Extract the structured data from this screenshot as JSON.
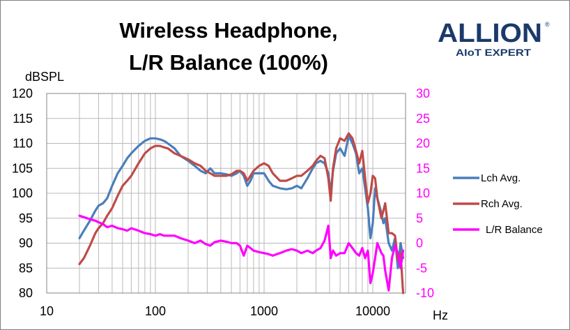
{
  "logo": {
    "brand": "ALLION",
    "registered": "®",
    "tagline": "AIoT EXPERT",
    "brand_color": "#1b3a6b"
  },
  "chart_data": {
    "type": "line",
    "title_lines": [
      "Wireless Headphone,",
      "L/R Balance (100%)"
    ],
    "ylabel": "dBSPL",
    "xlabel": "Hz",
    "x_scale": "log",
    "xlim": [
      10,
      20000
    ],
    "x_ticks": [
      10,
      100,
      1000,
      10000
    ],
    "x_tick_labels": [
      "10",
      "100",
      "1000",
      "10000"
    ],
    "ylim": [
      80,
      120
    ],
    "y_ticks": [
      80,
      85,
      90,
      95,
      100,
      105,
      110,
      115,
      120
    ],
    "y_tick_labels": [
      "80",
      "85",
      "90",
      "95",
      "100",
      "105",
      "110",
      "115",
      "120"
    ],
    "y2lim": [
      -10,
      30
    ],
    "y2_ticks": [
      -10,
      -5,
      0,
      5,
      10,
      15,
      20,
      25,
      30
    ],
    "y2_tick_labels": [
      "-10",
      "-5",
      "0",
      "5",
      "10",
      "15",
      "20",
      "25",
      "30"
    ],
    "grid": true,
    "legend_position": "right",
    "series": [
      {
        "name": "Lch Avg.",
        "axis": "left",
        "color": "#4a7ebb",
        "points": [
          [
            20,
            91.0
          ],
          [
            22,
            92.5
          ],
          [
            25,
            94.5
          ],
          [
            28,
            96.5
          ],
          [
            30,
            97.5
          ],
          [
            33,
            98.0
          ],
          [
            36,
            99.0
          ],
          [
            40,
            101.5
          ],
          [
            45,
            104.0
          ],
          [
            50,
            105.5
          ],
          [
            55,
            107.0
          ],
          [
            60,
            108.0
          ],
          [
            70,
            109.5
          ],
          [
            80,
            110.5
          ],
          [
            90,
            111.0
          ],
          [
            100,
            111.0
          ],
          [
            110,
            110.8
          ],
          [
            120,
            110.5
          ],
          [
            130,
            110.0
          ],
          [
            150,
            109.0
          ],
          [
            170,
            107.5
          ],
          [
            200,
            106.5
          ],
          [
            230,
            105.5
          ],
          [
            260,
            104.5
          ],
          [
            290,
            104.0
          ],
          [
            320,
            105.0
          ],
          [
            350,
            104.0
          ],
          [
            400,
            104.0
          ],
          [
            450,
            103.8
          ],
          [
            500,
            103.5
          ],
          [
            560,
            104.0
          ],
          [
            600,
            104.5
          ],
          [
            650,
            103.5
          ],
          [
            700,
            101.5
          ],
          [
            750,
            102.5
          ],
          [
            800,
            104.0
          ],
          [
            900,
            104.0
          ],
          [
            1000,
            104.0
          ],
          [
            1100,
            102.5
          ],
          [
            1200,
            101.5
          ],
          [
            1400,
            101.0
          ],
          [
            1600,
            100.8
          ],
          [
            1800,
            101.0
          ],
          [
            2000,
            101.5
          ],
          [
            2200,
            101.0
          ],
          [
            2500,
            103.0
          ],
          [
            2800,
            105.0
          ],
          [
            3000,
            106.0
          ],
          [
            3300,
            106.5
          ],
          [
            3600,
            106.0
          ],
          [
            3900,
            104.0
          ],
          [
            4100,
            100.0
          ],
          [
            4300,
            104.5
          ],
          [
            4600,
            108.0
          ],
          [
            5000,
            109.0
          ],
          [
            5500,
            107.5
          ],
          [
            6000,
            111.5
          ],
          [
            6500,
            110.0
          ],
          [
            7000,
            108.0
          ],
          [
            7500,
            104.0
          ],
          [
            8000,
            105.0
          ],
          [
            8500,
            101.0
          ],
          [
            9000,
            97.0
          ],
          [
            9500,
            91.0
          ],
          [
            10000,
            94.0
          ],
          [
            10500,
            101.0
          ],
          [
            11000,
            99.0
          ],
          [
            12000,
            96.0
          ],
          [
            12500,
            94.0
          ],
          [
            13000,
            95.0
          ],
          [
            14000,
            90.0
          ],
          [
            15000,
            88.5
          ],
          [
            16000,
            91.0
          ],
          [
            17000,
            85.0
          ],
          [
            18000,
            90.0
          ],
          [
            19000,
            87.0
          ]
        ]
      },
      {
        "name": "Rch Avg.",
        "axis": "left",
        "color": "#be4b48",
        "points": [
          [
            20,
            85.8
          ],
          [
            22,
            87.0
          ],
          [
            25,
            89.5
          ],
          [
            28,
            92.0
          ],
          [
            30,
            93.0
          ],
          [
            33,
            94.0
          ],
          [
            36,
            95.5
          ],
          [
            40,
            97.0
          ],
          [
            45,
            99.5
          ],
          [
            50,
            101.5
          ],
          [
            55,
            102.5
          ],
          [
            60,
            103.5
          ],
          [
            70,
            106.0
          ],
          [
            80,
            108.0
          ],
          [
            90,
            109.0
          ],
          [
            100,
            109.5
          ],
          [
            110,
            109.5
          ],
          [
            120,
            109.2
          ],
          [
            130,
            109.0
          ],
          [
            150,
            108.0
          ],
          [
            170,
            107.5
          ],
          [
            200,
            106.8
          ],
          [
            230,
            106.0
          ],
          [
            260,
            105.5
          ],
          [
            290,
            104.5
          ],
          [
            320,
            104.0
          ],
          [
            350,
            103.5
          ],
          [
            400,
            103.5
          ],
          [
            450,
            103.5
          ],
          [
            500,
            103.8
          ],
          [
            560,
            104.5
          ],
          [
            600,
            104.5
          ],
          [
            650,
            104.0
          ],
          [
            700,
            102.5
          ],
          [
            750,
            103.5
          ],
          [
            800,
            104.5
          ],
          [
            900,
            105.5
          ],
          [
            1000,
            106.0
          ],
          [
            1100,
            105.5
          ],
          [
            1200,
            104.0
          ],
          [
            1400,
            102.5
          ],
          [
            1600,
            102.5
          ],
          [
            1800,
            103.0
          ],
          [
            2000,
            103.5
          ],
          [
            2200,
            103.5
          ],
          [
            2500,
            104.5
          ],
          [
            2800,
            105.5
          ],
          [
            3000,
            106.5
          ],
          [
            3300,
            107.5
          ],
          [
            3600,
            107.0
          ],
          [
            3900,
            103.0
          ],
          [
            4100,
            98.5
          ],
          [
            4300,
            105.0
          ],
          [
            4600,
            109.0
          ],
          [
            5000,
            111.0
          ],
          [
            5500,
            110.5
          ],
          [
            6000,
            112.0
          ],
          [
            6500,
            111.0
          ],
          [
            7000,
            108.5
          ],
          [
            7500,
            106.0
          ],
          [
            8000,
            108.5
          ],
          [
            8500,
            103.0
          ],
          [
            9000,
            98.0
          ],
          [
            9500,
            100.0
          ],
          [
            10000,
            103.5
          ],
          [
            10500,
            103.0
          ],
          [
            11000,
            99.0
          ],
          [
            12000,
            95.0
          ],
          [
            12500,
            96.5
          ],
          [
            13000,
            98.0
          ],
          [
            14000,
            92.0
          ],
          [
            15000,
            92.0
          ],
          [
            16000,
            91.5
          ],
          [
            17000,
            86.5
          ],
          [
            18000,
            88.0
          ],
          [
            19000,
            80.0
          ]
        ]
      },
      {
        "name": "L/R Balance",
        "axis": "right",
        "color": "#ff00ff",
        "points": [
          [
            20,
            5.5
          ],
          [
            22,
            5.2
          ],
          [
            25,
            4.8
          ],
          [
            28,
            4.5
          ],
          [
            30,
            4.2
          ],
          [
            33,
            3.8
          ],
          [
            36,
            3.2
          ],
          [
            40,
            3.5
          ],
          [
            45,
            3.0
          ],
          [
            50,
            2.8
          ],
          [
            55,
            2.5
          ],
          [
            60,
            3.0
          ],
          [
            70,
            2.5
          ],
          [
            80,
            2.0
          ],
          [
            90,
            1.8
          ],
          [
            100,
            1.5
          ],
          [
            110,
            1.8
          ],
          [
            120,
            1.5
          ],
          [
            130,
            1.5
          ],
          [
            150,
            1.5
          ],
          [
            170,
            1.0
          ],
          [
            200,
            0.5
          ],
          [
            230,
            0.0
          ],
          [
            260,
            0.5
          ],
          [
            290,
            -0.2
          ],
          [
            320,
            -0.5
          ],
          [
            350,
            0.2
          ],
          [
            400,
            0.5
          ],
          [
            450,
            0.3
          ],
          [
            500,
            0.0
          ],
          [
            560,
            0.0
          ],
          [
            600,
            -0.5
          ],
          [
            650,
            -2.5
          ],
          [
            700,
            -0.5
          ],
          [
            750,
            -1.0
          ],
          [
            800,
            -1.5
          ],
          [
            900,
            -1.8
          ],
          [
            1000,
            -2.0
          ],
          [
            1100,
            -2.2
          ],
          [
            1200,
            -2.5
          ],
          [
            1400,
            -2.0
          ],
          [
            1600,
            -1.5
          ],
          [
            1800,
            -1.2
          ],
          [
            2000,
            -1.5
          ],
          [
            2200,
            -2.0
          ],
          [
            2500,
            -1.5
          ],
          [
            2800,
            -2.0
          ],
          [
            3000,
            -1.5
          ],
          [
            3300,
            -1.0
          ],
          [
            3600,
            0.5
          ],
          [
            3900,
            3.5
          ],
          [
            4100,
            -3.0
          ],
          [
            4300,
            -1.5
          ],
          [
            4600,
            -2.5
          ],
          [
            5000,
            -2.0
          ],
          [
            5500,
            -2.0
          ],
          [
            6000,
            0.0
          ],
          [
            6500,
            -1.0
          ],
          [
            7000,
            -2.0
          ],
          [
            7500,
            -2.5
          ],
          [
            8000,
            -1.0
          ],
          [
            8500,
            -3.0
          ],
          [
            9000,
            -1.5
          ],
          [
            9500,
            -8.0
          ],
          [
            10000,
            -6.0
          ],
          [
            10500,
            -3.0
          ],
          [
            11000,
            0.0
          ],
          [
            12000,
            -2.0
          ],
          [
            12500,
            -2.5
          ],
          [
            13000,
            -5.5
          ],
          [
            14000,
            -9.5
          ],
          [
            15000,
            -3.0
          ],
          [
            16000,
            -0.5
          ],
          [
            17000,
            -2.0
          ],
          [
            18000,
            -5.0
          ],
          [
            19000,
            -1.5
          ]
        ]
      }
    ]
  }
}
